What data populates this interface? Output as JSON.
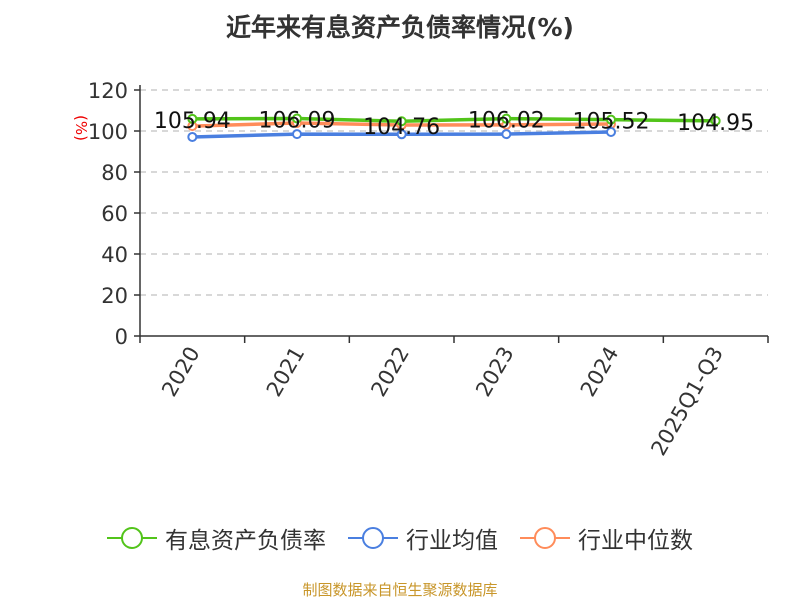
{
  "chart_data": {
    "type": "line",
    "title": "近年来有息资产负债率情况(%)",
    "ylabel": "(%)",
    "ylim": [
      0,
      120
    ],
    "yticks": [
      0,
      20,
      40,
      60,
      80,
      100,
      120
    ],
    "grid": true,
    "legend_position": "bottom",
    "categories": [
      "2020",
      "2021",
      "2022",
      "2023",
      "2024",
      "2025Q1-Q3"
    ],
    "series": [
      {
        "name": "有息资产负债率",
        "color": "#52c41a",
        "values": [
          105.94,
          106.09,
          104.76,
          106.02,
          105.52,
          104.95
        ],
        "labels": [
          "105.94",
          "106.09",
          "104.76",
          "106.02",
          "105.52",
          "104.95"
        ]
      },
      {
        "name": "行业均值",
        "color": "#4a7fe0",
        "values": [
          97.1,
          98.5,
          98.4,
          98.5,
          99.5,
          null
        ]
      },
      {
        "name": "行业中位数",
        "color": "#ff8c5a",
        "values": [
          102.4,
          103.9,
          102.9,
          103.0,
          103.4,
          null
        ]
      }
    ]
  },
  "source": "制图数据来自恒生聚源数据库"
}
